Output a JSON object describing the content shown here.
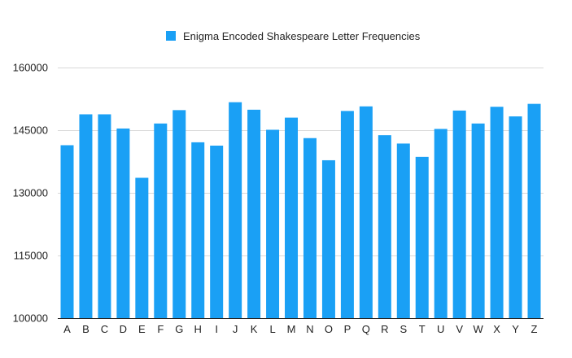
{
  "chart_data": {
    "type": "bar",
    "legend": {
      "position": "top-center",
      "entries": [
        "Enigma Encoded Shakespeare Letter Frequencies"
      ]
    },
    "categories": [
      "A",
      "B",
      "C",
      "D",
      "E",
      "F",
      "G",
      "H",
      "I",
      "J",
      "K",
      "L",
      "M",
      "N",
      "O",
      "P",
      "Q",
      "R",
      "S",
      "T",
      "U",
      "V",
      "W",
      "X",
      "Y",
      "Z"
    ],
    "series": [
      {
        "name": "Enigma Encoded Shakespeare Letter Frequencies",
        "color": "#1AA0F5",
        "values": [
          141400,
          148800,
          148800,
          145400,
          133600,
          146600,
          149800,
          142100,
          141300,
          151700,
          149900,
          145100,
          148000,
          143100,
          137800,
          149600,
          150700,
          143800,
          141800,
          138600,
          145300,
          149700,
          146600,
          150600,
          148300,
          151300
        ]
      }
    ],
    "ylim": [
      100000,
      160000
    ],
    "yticks": [
      "100000",
      "115000",
      "130000",
      "145000",
      "160000"
    ],
    "ytick_values": [
      100000,
      115000,
      130000,
      145000,
      160000
    ],
    "grid": true,
    "gridColor": "#d9d9d9",
    "axisColor": "#222222"
  }
}
